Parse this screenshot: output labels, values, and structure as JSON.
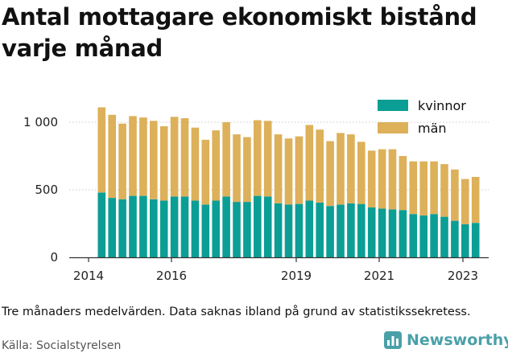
{
  "title": "Antal mottagare ekonomiskt bistånd varje månad",
  "note": "Tre månaders medelvärden. Data saknas ibland på grund av statistikssekretess.",
  "source": "Källa: Socialstyrelsen",
  "brand": {
    "name": "Newsworthy",
    "icon": "bar-chart-logo-icon",
    "color": "#4aa0a9"
  },
  "chart_data": {
    "type": "bar",
    "stacked": true,
    "x_ticks": [
      "2014",
      "2016",
      "2019",
      "2021",
      "2023"
    ],
    "y_ticks": [
      "0",
      "500",
      "1 000"
    ],
    "ylim": [
      0,
      1150
    ],
    "grid": "horizontal",
    "legend_position": "top-right",
    "series": [
      {
        "name": "kvinnor",
        "color": "#0b9e95",
        "values": [
          480,
          440,
          430,
          455,
          455,
          430,
          420,
          450,
          450,
          420,
          390,
          420,
          450,
          410,
          410,
          455,
          450,
          400,
          390,
          395,
          420,
          405,
          380,
          390,
          400,
          395,
          370,
          360,
          355,
          350,
          320,
          310,
          320,
          300,
          270,
          245,
          255
        ]
      },
      {
        "name": "män",
        "color": "#ddb05a",
        "values": [
          630,
          615,
          560,
          590,
          580,
          580,
          550,
          590,
          580,
          540,
          480,
          520,
          550,
          500,
          480,
          560,
          560,
          510,
          490,
          500,
          560,
          540,
          480,
          530,
          510,
          460,
          420,
          440,
          445,
          400,
          390,
          400,
          390,
          390,
          380,
          335,
          340
        ]
      }
    ]
  }
}
